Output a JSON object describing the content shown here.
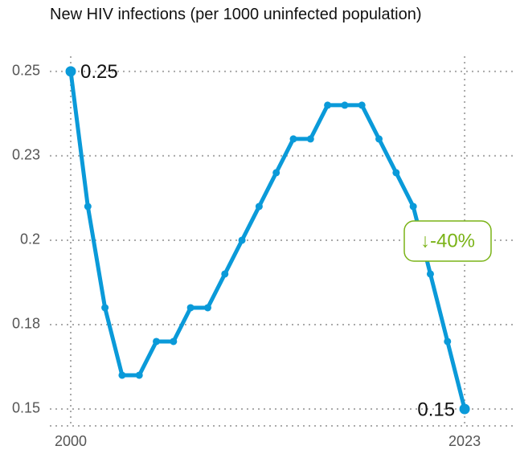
{
  "chart_data": {
    "type": "line",
    "title": "New HIV infections (per 1000 uninfected population)",
    "x": [
      2000,
      2001,
      2002,
      2003,
      2004,
      2005,
      2006,
      2007,
      2008,
      2009,
      2010,
      2011,
      2012,
      2013,
      2014,
      2015,
      2016,
      2017,
      2018,
      2019,
      2020,
      2021,
      2022,
      2023
    ],
    "series": [
      {
        "name": "New HIV infections",
        "color": "#0a9ad9",
        "values": [
          0.25,
          0.21,
          0.18,
          0.16,
          0.16,
          0.17,
          0.17,
          0.18,
          0.18,
          0.19,
          0.2,
          0.21,
          0.22,
          0.23,
          0.23,
          0.24,
          0.24,
          0.24,
          0.23,
          0.22,
          0.21,
          0.19,
          0.17,
          0.15
        ],
        "value_labels": [
          "0.25",
          null,
          null,
          null,
          null,
          null,
          null,
          null,
          null,
          null,
          null,
          null,
          null,
          null,
          null,
          null,
          null,
          null,
          null,
          null,
          null,
          null,
          null,
          "0.15"
        ]
      }
    ],
    "annotations": [
      {
        "text": "↓-40%",
        "color": "#7ab317"
      }
    ],
    "xlim": [
      1998.78,
      2026.0
    ],
    "xticks": [
      2000,
      2023
    ],
    "ylim": [
      0.145,
      0.2545
    ],
    "yticks": [
      0.15,
      {
        "value": 0.175,
        "label": "0.18"
      },
      0.2,
      {
        "value": 0.225,
        "label": "0.23"
      },
      0.25
    ],
    "grid": true
  }
}
